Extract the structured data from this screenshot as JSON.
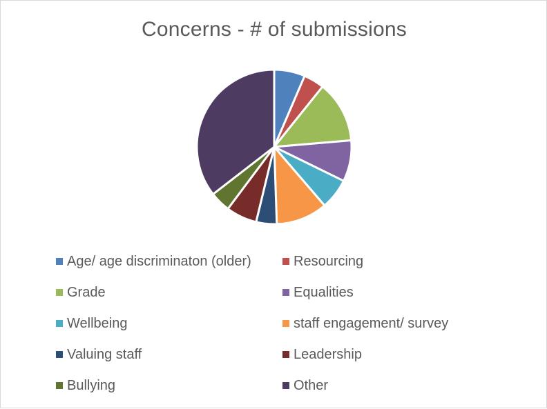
{
  "chart_data": {
    "type": "pie",
    "title": "Concerns - # of submissions",
    "legend_position": "bottom",
    "categories": [
      "Age/ age discriminaton (older)",
      "Resourcing",
      "Grade",
      "Equalities",
      "Wellbeing",
      "staff engagement/ survey",
      "Valuing staff",
      "Leadership",
      "Bullying",
      "Other"
    ],
    "values": [
      6,
      4,
      12,
      8,
      6,
      10,
      4,
      6,
      4,
      33
    ],
    "colors": [
      "#4F81BD",
      "#C0504D",
      "#9BBB59",
      "#8064A2",
      "#4BACC6",
      "#F79646",
      "#2C4D75",
      "#772C2A",
      "#5F7530",
      "#4D3B62"
    ]
  }
}
